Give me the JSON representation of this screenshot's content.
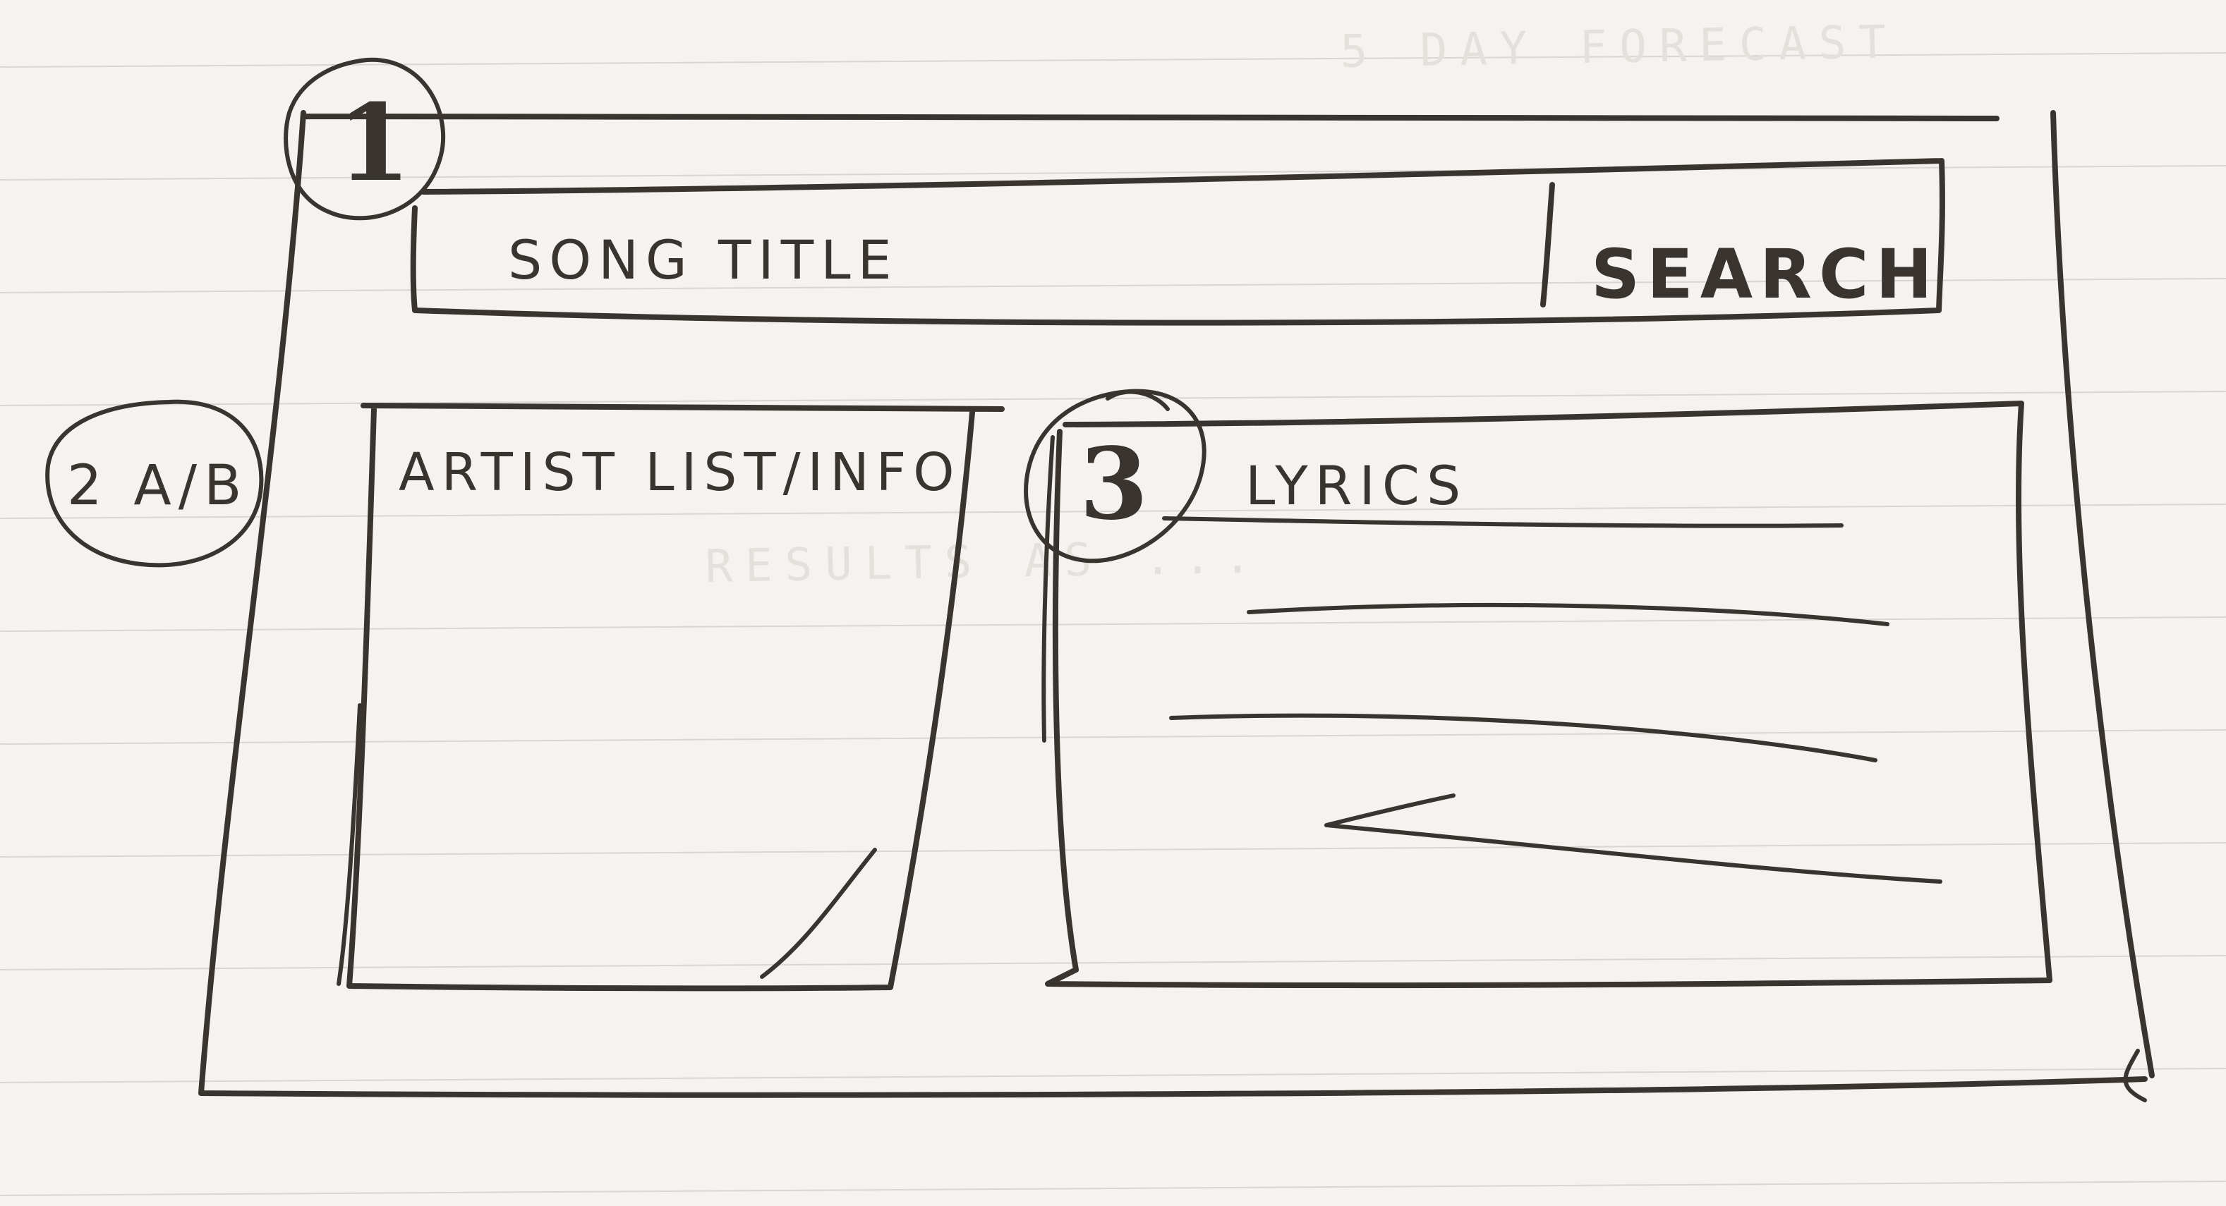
{
  "sketch": {
    "colors": {
      "paper": "#f5f3ef",
      "ink": "#3a3430",
      "ruled_lines": "#d8d6d2",
      "ghost_text": "#e4e1dc"
    },
    "header": {
      "callout": "1",
      "song_title_label": "SONG TITLE",
      "search_label": "SEARCH"
    },
    "artist_panel": {
      "callout": "2 A/B",
      "label": "ARTIST LIST/INFO"
    },
    "lyrics_panel": {
      "callout": "3",
      "label": "LYRICS"
    },
    "ghost_text": {
      "top": "5 DAY FORECAST",
      "middle": "RESULTS AS ..."
    }
  }
}
